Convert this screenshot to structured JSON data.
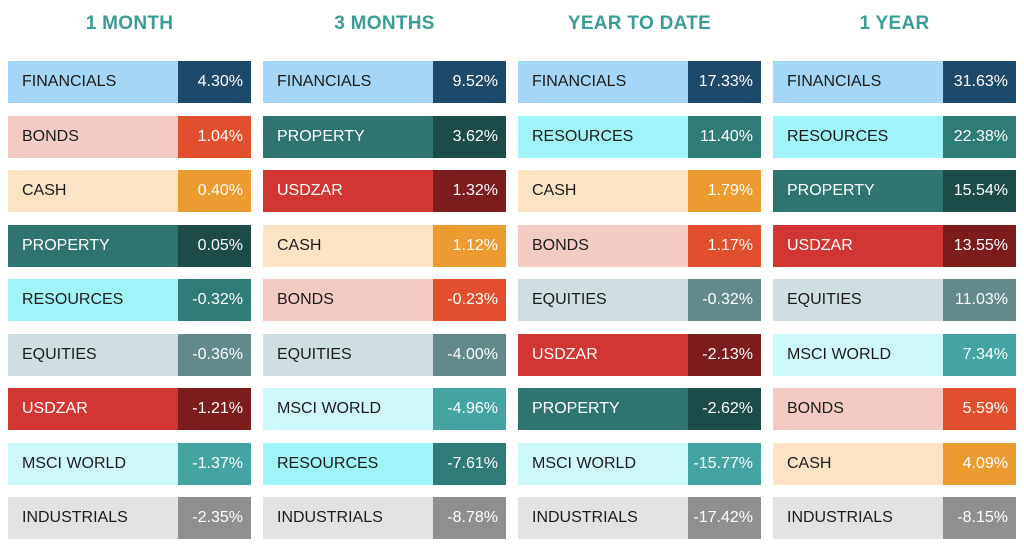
{
  "palette": {
    "FINANCIALS": {
      "label_bg": "#a3d6f7",
      "value_bg": "#1d4a6b",
      "label_fg": "#1c1c1c"
    },
    "BONDS": {
      "label_bg": "#f3cbc4",
      "value_bg": "#e0502e",
      "label_fg": "#1c1c1c"
    },
    "CASH": {
      "label_bg": "#fbe3c4",
      "value_bg": "#eb9b30",
      "label_fg": "#1c1c1c"
    },
    "PROPERTY": {
      "label_bg": "#2e7570",
      "value_bg": "#1d4c48",
      "label_fg": "#ffffff"
    },
    "RESOURCES": {
      "label_bg": "#a0f3f6",
      "value_bg": "#2f7b76",
      "label_fg": "#1c1c1c"
    },
    "EQUITIES": {
      "label_bg": "#cfdfe1",
      "value_bg": "#63898b",
      "label_fg": "#1c1c1c"
    },
    "USDZAR": {
      "label_bg": "#d13632",
      "value_bg": "#7c1c1c",
      "label_fg": "#ffffff"
    },
    "MSCI WORLD": {
      "label_bg": "#cff8fb",
      "value_bg": "#44a4a1",
      "label_fg": "#1c1c1c"
    },
    "INDUSTRIALS": {
      "label_bg": "#e2e2e2",
      "value_bg": "#8f8f8f",
      "label_fg": "#1c1c1c"
    }
  },
  "title_color": "#3b9c95",
  "chart_data": [
    {
      "type": "table",
      "title": "1 MONTH",
      "categories": [
        "FINANCIALS",
        "BONDS",
        "CASH",
        "PROPERTY",
        "RESOURCES",
        "EQUITIES",
        "USDZAR",
        "MSCI WORLD",
        "INDUSTRIALS"
      ],
      "values": [
        4.3,
        1.04,
        0.4,
        0.05,
        -0.32,
        -0.36,
        -1.21,
        -1.37,
        -2.35
      ],
      "labels": [
        "4.30%",
        "1.04%",
        "0.40%",
        "0.05%",
        "-0.32%",
        "-0.36%",
        "-1.21%",
        "-1.37%",
        "-2.35%"
      ]
    },
    {
      "type": "table",
      "title": "3 MONTHS",
      "categories": [
        "FINANCIALS",
        "PROPERTY",
        "USDZAR",
        "CASH",
        "BONDS",
        "EQUITIES",
        "MSCI WORLD",
        "RESOURCES",
        "INDUSTRIALS"
      ],
      "values": [
        9.52,
        3.62,
        1.32,
        1.12,
        -0.23,
        -4.0,
        -4.96,
        -7.61,
        -8.78
      ],
      "labels": [
        "9.52%",
        "3.62%",
        "1.32%",
        "1.12%",
        "-0.23%",
        "-4.00%",
        "-4.96%",
        "-7.61%",
        "-8.78%"
      ]
    },
    {
      "type": "table",
      "title": "YEAR TO DATE",
      "categories": [
        "FINANCIALS",
        "RESOURCES",
        "CASH",
        "BONDS",
        "EQUITIES",
        "USDZAR",
        "PROPERTY",
        "MSCI WORLD",
        "INDUSTRIALS"
      ],
      "values": [
        17.33,
        11.4,
        1.79,
        1.17,
        -0.32,
        -2.13,
        -2.62,
        -15.77,
        -17.42
      ],
      "labels": [
        "17.33%",
        "11.40%",
        "1.79%",
        "1.17%",
        "-0.32%",
        "-2.13%",
        "-2.62%",
        "-15.77%",
        "-17.42%"
      ]
    },
    {
      "type": "table",
      "title": "1 YEAR",
      "categories": [
        "FINANCIALS",
        "RESOURCES",
        "PROPERTY",
        "USDZAR",
        "EQUITIES",
        "MSCI WORLD",
        "BONDS",
        "CASH",
        "INDUSTRIALS"
      ],
      "values": [
        31.63,
        22.38,
        15.54,
        13.55,
        11.03,
        7.34,
        5.59,
        4.09,
        -8.15
      ],
      "labels": [
        "31.63%",
        "22.38%",
        "15.54%",
        "13.55%",
        "11.03%",
        "7.34%",
        "5.59%",
        "4.09%",
        "-8.15%"
      ]
    }
  ]
}
